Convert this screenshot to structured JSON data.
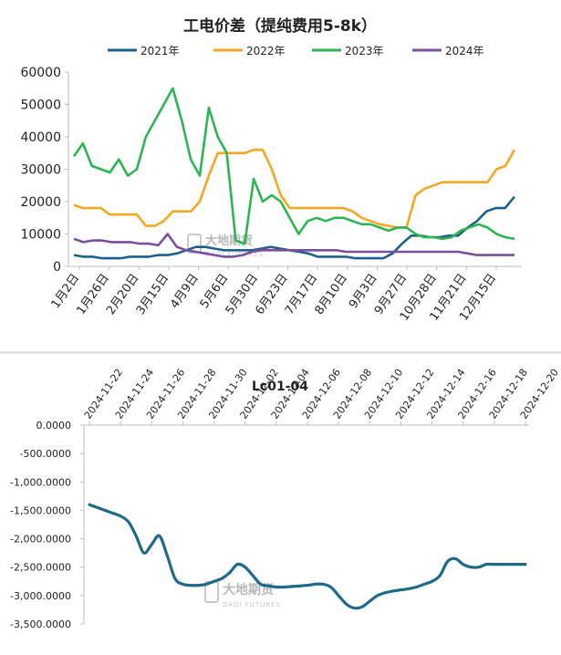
{
  "chart_data": [
    {
      "type": "line",
      "title": "工电价差（提纯费用5-8k）",
      "ylim": [
        0,
        60000
      ],
      "yticks": [
        "0",
        "10000",
        "20000",
        "30000",
        "40000",
        "50000",
        "60000"
      ],
      "xtick_labels": [
        "1月2日",
        "1月26日",
        "2月20日",
        "3月15日",
        "4月9日",
        "5月6日",
        "5月30日",
        "6月23日",
        "7月17日",
        "8月10日",
        "9月3日",
        "9月27日",
        "10月28日",
        "11月21日",
        "12月15日"
      ],
      "legend_position": "top",
      "grid": false,
      "series": [
        {
          "name": "2021年",
          "color": "#1f5f8b",
          "values": [
            3500,
            3000,
            3000,
            2500,
            2500,
            2500,
            3000,
            3000,
            3000,
            3500,
            3500,
            4000,
            5000,
            6000,
            6000,
            5500,
            5000,
            5000,
            5000,
            5000,
            5500,
            6000,
            5500,
            5000,
            4500,
            4000,
            3000,
            3000,
            3000,
            3000,
            2500,
            2500,
            2500,
            2500,
            4000,
            7000,
            9500,
            9500,
            9000,
            9000,
            9500,
            9500,
            12000,
            14000,
            17000,
            18000,
            18000,
            21500
          ]
        },
        {
          "name": "2022年",
          "color": "#f5a623",
          "values": [
            19000,
            18000,
            18000,
            18000,
            16000,
            16000,
            16000,
            16000,
            12500,
            12500,
            14000,
            17000,
            17000,
            17000,
            20000,
            28000,
            35000,
            35000,
            35000,
            35000,
            36000,
            36000,
            30000,
            22000,
            18000,
            18000,
            18000,
            18000,
            18000,
            18000,
            18000,
            17000,
            15000,
            14000,
            13000,
            12500,
            12000,
            12000,
            22000,
            24000,
            25000,
            26000,
            26000,
            26000,
            26000,
            26000,
            26000,
            30000,
            31000,
            36000
          ]
        },
        {
          "name": "2023年",
          "color": "#2db552",
          "values": [
            34000,
            38000,
            31000,
            30000,
            29000,
            33000,
            28000,
            30000,
            40000,
            45000,
            50000,
            55000,
            45000,
            33000,
            28000,
            49000,
            40000,
            35000,
            8000,
            7000,
            27000,
            20000,
            22000,
            20000,
            15000,
            10000,
            14000,
            15000,
            14000,
            15000,
            15000,
            14000,
            13000,
            13000,
            12000,
            11000,
            12000,
            12000,
            10000,
            9000,
            9000,
            8500,
            9000,
            11000,
            12000,
            13000,
            12000,
            10000,
            9000,
            8500
          ]
        },
        {
          "name": "2024年",
          "color": "#7b4f9e",
          "values": [
            8500,
            7500,
            8000,
            8000,
            7500,
            7500,
            7500,
            7000,
            7000,
            6500,
            10000,
            6000,
            5000,
            4500,
            4000,
            3500,
            3000,
            3000,
            3500,
            4500,
            5000,
            5000,
            5000,
            5000,
            5000,
            5000,
            5000,
            5000,
            5000,
            4500,
            4500,
            4500,
            4500,
            4500,
            4500,
            4500,
            4500,
            4500,
            4500,
            4500,
            4500,
            4500,
            4000,
            3500,
            3500,
            3500,
            3500,
            3500
          ]
        }
      ]
    },
    {
      "type": "line",
      "title": "Lc01-04",
      "ylim": [
        -3500,
        0
      ],
      "yticks": [
        "0.0000",
        "-500.0000",
        "-1,000.0000",
        "-1,500.0000",
        "-2,000.0000",
        "-2,500.0000",
        "-3,000.0000",
        "-3,500.0000"
      ],
      "xtick_labels": [
        "2024-11-22",
        "2024-11-24",
        "2024-11-26",
        "2024-11-28",
        "2024-11-30",
        "2024-12-02",
        "2024-12-04",
        "2024-12-06",
        "2024-12-08",
        "2024-12-10",
        "2024-12-12",
        "2024-12-14",
        "2024-12-16",
        "2024-12-18",
        "2024-12-20"
      ],
      "x": [
        0,
        0.5,
        1,
        1.5,
        2,
        2.5,
        3,
        3.5,
        4,
        4.5,
        5,
        5.5,
        6,
        6.5,
        7,
        7.5,
        8,
        8.5,
        9,
        9.5,
        10,
        10.5,
        11,
        11.5,
        12,
        12.5,
        13,
        13.5,
        14,
        14.5,
        15,
        15.5,
        16,
        16.5,
        17,
        17.5,
        18,
        18.5,
        19,
        19.5,
        20,
        20.5,
        21,
        21.5,
        22,
        22.5,
        23,
        23.5,
        24,
        24.5,
        25,
        25.5,
        26,
        26.5,
        27,
        27.5,
        28
      ],
      "values": [
        -1400,
        -1450,
        -1500,
        -1550,
        -1600,
        -1700,
        -1950,
        -2250,
        -2100,
        -1950,
        -2300,
        -2700,
        -2800,
        -2820,
        -2820,
        -2800,
        -2750,
        -2700,
        -2600,
        -2450,
        -2500,
        -2650,
        -2800,
        -2830,
        -2850,
        -2850,
        -2840,
        -2830,
        -2820,
        -2800,
        -2800,
        -2850,
        -3000,
        -3150,
        -3220,
        -3200,
        -3100,
        -3000,
        -2950,
        -2920,
        -2900,
        -2880,
        -2850,
        -2800,
        -2750,
        -2650,
        -2400,
        -2350,
        -2450,
        -2500,
        -2500,
        -2450,
        -2450,
        -2450,
        -2450,
        -2450,
        -2450
      ],
      "series_color": "#1f6a8a",
      "grid": false
    }
  ],
  "watermark": {
    "brand_cn": "大地期货",
    "brand_en": "DADI FUTURES"
  }
}
